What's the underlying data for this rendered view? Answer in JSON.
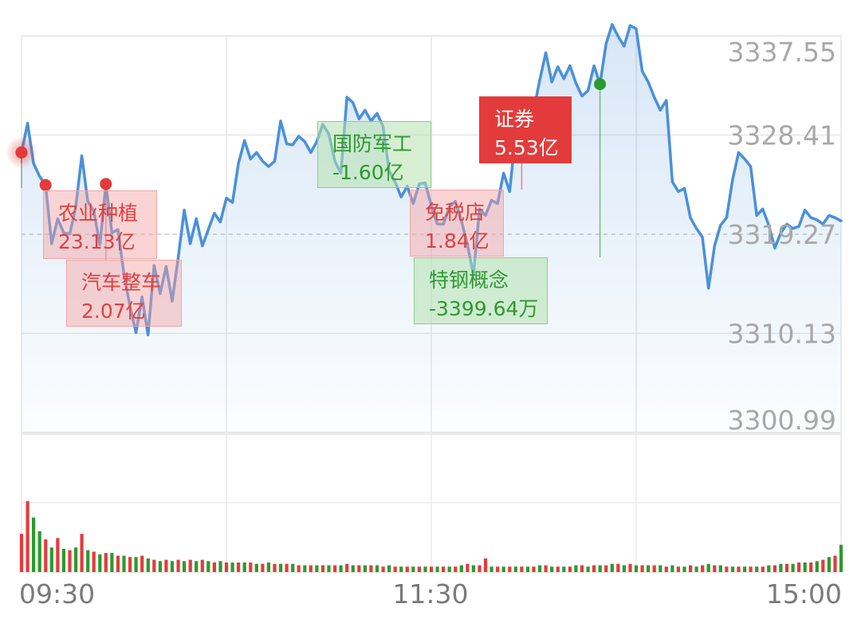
{
  "chart_data": {
    "type": "line",
    "title": "",
    "xlabel": "",
    "ylabel": "",
    "x_ticks": [
      "09:30",
      "11:30",
      "15:00"
    ],
    "y_ticks": [
      3337.55,
      3328.41,
      3319.27,
      3310.13,
      3300.99
    ],
    "y_tick_labels": [
      "3337.55",
      "3328.41",
      "3319.27",
      "3310.13",
      "3300.99"
    ],
    "ylim": [
      3300.99,
      3337.55
    ],
    "reference_price": 3319.27,
    "grid": true,
    "colors": {
      "line": "#4a90d9",
      "up": "#e33b3b",
      "down": "#2d9a2d"
    },
    "price_series": [
      [
        0,
        3326.8
      ],
      [
        2,
        3329.5
      ],
      [
        4,
        3325.8
      ],
      [
        6,
        3324.6
      ],
      [
        8,
        3323.8
      ],
      [
        10,
        3318.4
      ],
      [
        12,
        3320.7
      ],
      [
        14,
        3319.4
      ],
      [
        16,
        3319.3
      ],
      [
        18,
        3321.8
      ],
      [
        20,
        3326.5
      ],
      [
        22,
        3322.3
      ],
      [
        24,
        3321.4
      ],
      [
        26,
        3318.3
      ],
      [
        28,
        3323.9
      ],
      [
        30,
        3319.4
      ],
      [
        32,
        3319.7
      ],
      [
        34,
        3315.6
      ],
      [
        36,
        3312.6
      ],
      [
        38,
        3310.2
      ],
      [
        40,
        3313.5
      ],
      [
        42,
        3310.0
      ],
      [
        44,
        3316.4
      ],
      [
        46,
        3313.8
      ],
      [
        48,
        3316.3
      ],
      [
        50,
        3313.1
      ],
      [
        52,
        3317.1
      ],
      [
        54,
        3321.5
      ],
      [
        56,
        3318.4
      ],
      [
        58,
        3320.7
      ],
      [
        60,
        3318.2
      ],
      [
        62,
        3319.7
      ],
      [
        64,
        3321.2
      ],
      [
        66,
        3320.4
      ],
      [
        68,
        3322.6
      ],
      [
        70,
        3322.2
      ],
      [
        72,
        3325.8
      ],
      [
        74,
        3327.9
      ],
      [
        76,
        3326.2
      ],
      [
        78,
        3326.8
      ],
      [
        80,
        3326.0
      ],
      [
        82,
        3325.5
      ],
      [
        84,
        3326.0
      ],
      [
        86,
        3329.7
      ],
      [
        88,
        3327.6
      ],
      [
        90,
        3327.5
      ],
      [
        92,
        3328.3
      ],
      [
        94,
        3327.8
      ],
      [
        96,
        3326.8
      ],
      [
        98,
        3327.8
      ],
      [
        100,
        3329.4
      ],
      [
        102,
        3328.5
      ],
      [
        104,
        3326.0
      ],
      [
        106,
        3324.9
      ],
      [
        108,
        3331.9
      ],
      [
        110,
        3331.4
      ],
      [
        112,
        3329.9
      ],
      [
        114,
        3330.7
      ],
      [
        116,
        3329.7
      ],
      [
        118,
        3330.4
      ],
      [
        120,
        3329.2
      ],
      [
        122,
        3325.1
      ],
      [
        124,
        3324.1
      ],
      [
        126,
        3322.7
      ],
      [
        128,
        3323.7
      ],
      [
        130,
        3322.1
      ],
      [
        132,
        3323.9
      ],
      [
        134,
        3324.0
      ],
      [
        136,
        3321.9
      ],
      [
        138,
        3320.2
      ],
      [
        140,
        3320.2
      ],
      [
        142,
        3321.8
      ],
      [
        144,
        3322.3
      ],
      [
        146,
        3320.5
      ],
      [
        148,
        3318.3
      ],
      [
        150,
        3315.5
      ],
      [
        152,
        3321.6
      ],
      [
        154,
        3321.0
      ],
      [
        156,
        3322.4
      ],
      [
        158,
        3322.1
      ],
      [
        160,
        3324.9
      ],
      [
        162,
        3323.2
      ],
      [
        164,
        3328.6
      ],
      [
        166,
        3328.5
      ],
      [
        168,
        3330.0
      ],
      [
        170,
        3330.7
      ],
      [
        172,
        3333.5
      ],
      [
        174,
        3336.0
      ],
      [
        176,
        3333.3
      ],
      [
        178,
        3334.7
      ],
      [
        180,
        3333.6
      ],
      [
        182,
        3334.8
      ],
      [
        184,
        3333.2
      ],
      [
        186,
        3332.0
      ],
      [
        188,
        3332.5
      ],
      [
        190,
        3334.8
      ],
      [
        192,
        3333.1
      ],
      [
        194,
        3336.8
      ],
      [
        196,
        3338.6
      ],
      [
        198,
        3337.5
      ],
      [
        200,
        3336.6
      ],
      [
        202,
        3338.5
      ],
      [
        204,
        3338.2
      ],
      [
        206,
        3334.3
      ],
      [
        208,
        3333.3
      ],
      [
        210,
        3331.9
      ],
      [
        212,
        3330.7
      ],
      [
        214,
        3331.6
      ],
      [
        216,
        3324.1
      ],
      [
        218,
        3323.2
      ],
      [
        220,
        3323.5
      ],
      [
        222,
        3320.8
      ],
      [
        224,
        3319.8
      ],
      [
        226,
        3319.0
      ],
      [
        228,
        3314.3
      ],
      [
        230,
        3318.2
      ],
      [
        232,
        3320.1
      ],
      [
        234,
        3320.8
      ],
      [
        236,
        3324.3
      ],
      [
        238,
        3326.8
      ],
      [
        240,
        3326.2
      ],
      [
        242,
        3325.5
      ],
      [
        244,
        3321.0
      ],
      [
        246,
        3321.6
      ],
      [
        248,
        3320.1
      ],
      [
        250,
        3318.0
      ],
      [
        252,
        3319.4
      ],
      [
        254,
        3320.2
      ],
      [
        256,
        3319.8
      ],
      [
        258,
        3320.0
      ],
      [
        260,
        3321.5
      ],
      [
        262,
        3320.8
      ],
      [
        264,
        3320.6
      ],
      [
        266,
        3320.2
      ],
      [
        268,
        3321.0
      ],
      [
        270,
        3320.8
      ],
      [
        272,
        3320.5
      ]
    ],
    "annotations": [
      {
        "name": "农业种植",
        "value": "23.13亿",
        "direction": "up"
      },
      {
        "name": "汽车整车",
        "value": "2.07亿",
        "direction": "up"
      },
      {
        "name": "国防军工",
        "value": "-1.60亿",
        "direction": "down"
      },
      {
        "name": "免税店",
        "value": "1.84亿",
        "direction": "up"
      },
      {
        "name": "特钢概念",
        "value": "-3399.64万",
        "direction": "down"
      },
      {
        "name": "证券",
        "value": "5.53亿",
        "direction": "up",
        "highlight": true
      }
    ],
    "volume_series": [
      [
        0,
        28,
        "up"
      ],
      [
        2,
        52,
        "up"
      ],
      [
        4,
        40,
        "down"
      ],
      [
        6,
        30,
        "down"
      ],
      [
        8,
        24,
        "up"
      ],
      [
        10,
        18,
        "down"
      ],
      [
        12,
        25,
        "up"
      ],
      [
        14,
        17,
        "down"
      ],
      [
        16,
        16,
        "up"
      ],
      [
        18,
        18,
        "down"
      ],
      [
        20,
        28,
        "up"
      ],
      [
        22,
        16,
        "down"
      ],
      [
        24,
        15,
        "up"
      ],
      [
        26,
        13,
        "down"
      ],
      [
        28,
        14,
        "up"
      ],
      [
        30,
        14,
        "down"
      ],
      [
        32,
        12,
        "up"
      ],
      [
        34,
        12,
        "down"
      ],
      [
        36,
        11,
        "up"
      ],
      [
        38,
        11,
        "down"
      ],
      [
        40,
        12,
        "up"
      ],
      [
        42,
        10,
        "down"
      ],
      [
        44,
        9,
        "up"
      ],
      [
        46,
        8,
        "down"
      ],
      [
        48,
        9,
        "up"
      ],
      [
        50,
        8,
        "down"
      ],
      [
        52,
        9,
        "up"
      ],
      [
        54,
        8,
        "down"
      ],
      [
        56,
        9,
        "up"
      ],
      [
        58,
        8,
        "down"
      ],
      [
        60,
        9,
        "up"
      ],
      [
        62,
        8,
        "down"
      ],
      [
        64,
        7,
        "up"
      ],
      [
        66,
        8,
        "down"
      ],
      [
        68,
        7,
        "up"
      ],
      [
        70,
        7,
        "down"
      ],
      [
        72,
        7,
        "up"
      ],
      [
        74,
        7,
        "down"
      ],
      [
        76,
        7,
        "up"
      ],
      [
        78,
        6,
        "down"
      ],
      [
        80,
        6,
        "up"
      ],
      [
        82,
        7,
        "down"
      ],
      [
        84,
        6,
        "up"
      ],
      [
        86,
        6,
        "down"
      ],
      [
        88,
        6,
        "up"
      ],
      [
        90,
        6,
        "down"
      ],
      [
        92,
        5,
        "up"
      ],
      [
        94,
        5,
        "down"
      ],
      [
        96,
        5,
        "up"
      ],
      [
        98,
        5,
        "down"
      ],
      [
        100,
        5,
        "up"
      ],
      [
        102,
        5,
        "down"
      ],
      [
        104,
        5,
        "up"
      ],
      [
        106,
        5,
        "down"
      ],
      [
        108,
        6,
        "up"
      ],
      [
        110,
        5,
        "down"
      ],
      [
        112,
        5,
        "up"
      ],
      [
        114,
        5,
        "down"
      ],
      [
        116,
        5,
        "up"
      ],
      [
        118,
        5,
        "down"
      ],
      [
        120,
        4,
        "up"
      ],
      [
        122,
        5,
        "down"
      ],
      [
        124,
        4,
        "up"
      ],
      [
        126,
        4,
        "down"
      ],
      [
        128,
        4,
        "up"
      ],
      [
        130,
        4,
        "down"
      ],
      [
        132,
        4,
        "up"
      ],
      [
        134,
        4,
        "down"
      ],
      [
        136,
        4,
        "up"
      ],
      [
        138,
        4,
        "down"
      ],
      [
        140,
        4,
        "up"
      ],
      [
        142,
        4,
        "down"
      ],
      [
        144,
        4,
        "up"
      ],
      [
        146,
        5,
        "down"
      ],
      [
        148,
        6,
        "up"
      ],
      [
        150,
        5,
        "down"
      ],
      [
        152,
        5,
        "up"
      ],
      [
        154,
        10,
        "up"
      ],
      [
        156,
        4,
        "down"
      ],
      [
        158,
        4,
        "up"
      ],
      [
        160,
        4,
        "down"
      ],
      [
        162,
        4,
        "up"
      ],
      [
        164,
        4,
        "down"
      ],
      [
        166,
        4,
        "up"
      ],
      [
        168,
        4,
        "down"
      ],
      [
        170,
        4,
        "up"
      ],
      [
        172,
        5,
        "down"
      ],
      [
        174,
        5,
        "up"
      ],
      [
        176,
        4,
        "down"
      ],
      [
        178,
        4,
        "up"
      ],
      [
        180,
        4,
        "down"
      ],
      [
        182,
        4,
        "up"
      ],
      [
        184,
        5,
        "down"
      ],
      [
        186,
        5,
        "up"
      ],
      [
        188,
        4,
        "down"
      ],
      [
        190,
        5,
        "up"
      ],
      [
        192,
        5,
        "down"
      ],
      [
        194,
        5,
        "up"
      ],
      [
        196,
        6,
        "down"
      ],
      [
        198,
        6,
        "up"
      ],
      [
        200,
        5,
        "down"
      ],
      [
        202,
        6,
        "up"
      ],
      [
        204,
        5,
        "down"
      ],
      [
        206,
        5,
        "up"
      ],
      [
        208,
        5,
        "down"
      ],
      [
        210,
        5,
        "up"
      ],
      [
        212,
        5,
        "down"
      ],
      [
        214,
        4,
        "up"
      ],
      [
        216,
        5,
        "down"
      ],
      [
        218,
        4,
        "up"
      ],
      [
        220,
        4,
        "down"
      ],
      [
        222,
        5,
        "up"
      ],
      [
        224,
        4,
        "down"
      ],
      [
        226,
        5,
        "up"
      ],
      [
        228,
        6,
        "down"
      ],
      [
        230,
        5,
        "up"
      ],
      [
        232,
        5,
        "down"
      ],
      [
        234,
        4,
        "up"
      ],
      [
        236,
        4,
        "down"
      ],
      [
        238,
        4,
        "up"
      ],
      [
        240,
        4,
        "down"
      ],
      [
        242,
        4,
        "up"
      ],
      [
        244,
        4,
        "down"
      ],
      [
        246,
        4,
        "up"
      ],
      [
        248,
        5,
        "down"
      ],
      [
        250,
        5,
        "up"
      ],
      [
        252,
        6,
        "down"
      ],
      [
        254,
        6,
        "up"
      ],
      [
        256,
        6,
        "down"
      ],
      [
        258,
        7,
        "up"
      ],
      [
        260,
        7,
        "down"
      ],
      [
        262,
        7,
        "up"
      ],
      [
        264,
        8,
        "down"
      ],
      [
        266,
        9,
        "up"
      ],
      [
        268,
        11,
        "down"
      ],
      [
        270,
        12,
        "up"
      ],
      [
        272,
        20,
        "down"
      ]
    ]
  }
}
